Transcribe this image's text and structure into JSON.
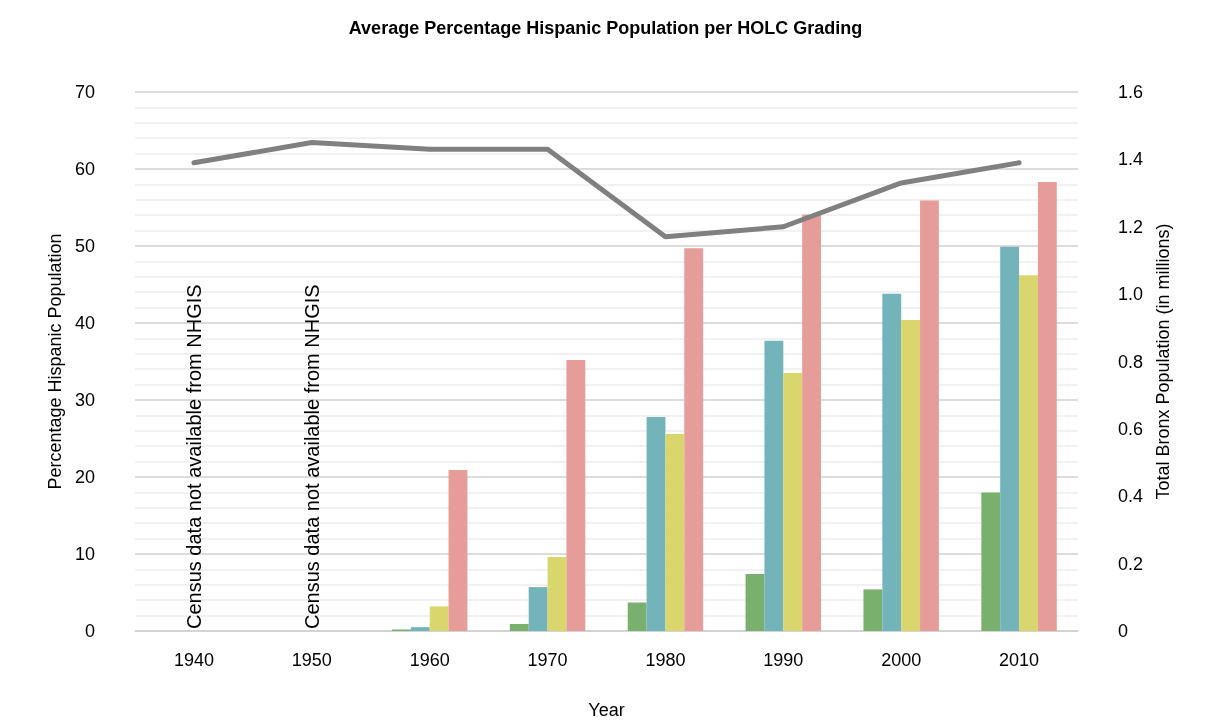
{
  "chart_data": {
    "type": "bar",
    "title": "Average Percentage Hispanic Population per HOLC Grading",
    "xlabel": "Year",
    "ylabel": "Percentage Hispanic Population",
    "y2label": "Total Bronx Population (in millions)",
    "categories": [
      "1940",
      "1950",
      "1960",
      "1970",
      "1980",
      "1990",
      "2000",
      "2010"
    ],
    "series": [
      {
        "color": "#7ab06e",
        "values": [
          null,
          null,
          0.2,
          0.9,
          3.7,
          7.4,
          5.4,
          18.0
        ]
      },
      {
        "color": "#72b4ba",
        "values": [
          null,
          null,
          0.5,
          5.7,
          27.8,
          37.7,
          43.8,
          49.9
        ]
      },
      {
        "color": "#dad66e",
        "values": [
          null,
          null,
          3.2,
          9.6,
          25.6,
          33.5,
          40.4,
          46.2
        ]
      },
      {
        "color": "#e69c99",
        "values": [
          null,
          null,
          20.9,
          35.2,
          49.7,
          54.1,
          55.9,
          58.3
        ]
      },
      {
        "type": "line",
        "axis": "y2",
        "color": "#808080",
        "values": [
          1.39,
          1.45,
          1.43,
          1.43,
          1.17,
          1.2,
          1.33,
          1.39
        ]
      }
    ],
    "ylim": [
      0,
      70
    ],
    "yticks": [
      0,
      10,
      20,
      30,
      40,
      50,
      60,
      70
    ],
    "y2lim": [
      0,
      1.6
    ],
    "y2ticks": [
      0,
      0.2,
      0.4,
      0.6,
      0.8,
      {
        "value": 1,
        "label": "1.0"
      },
      1.2,
      1.4,
      1.6
    ],
    "grid": "y",
    "marker": "none",
    "line_style": "solid",
    "annotations": [
      "Census data not available from NHGIS",
      "Census data not available from NHGIS"
    ]
  }
}
